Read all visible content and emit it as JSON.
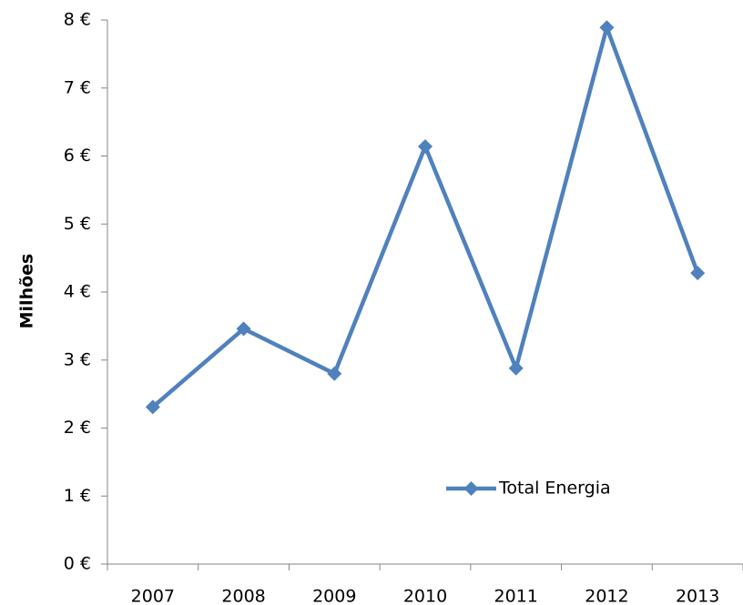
{
  "chart_data": {
    "type": "line",
    "ylabel": "Milhões",
    "categories": [
      "2007",
      "2008",
      "2009",
      "2010",
      "2011",
      "2012",
      "2013"
    ],
    "series": [
      {
        "name": "Total Energia",
        "color": "#4f81bd",
        "values": [
          2.31,
          3.46,
          2.8,
          6.14,
          2.88,
          7.89,
          4.28
        ]
      }
    ],
    "ylim": [
      0,
      8
    ],
    "yticks": [
      {
        "value": 0,
        "label": "0 €"
      },
      {
        "value": 1,
        "label": "1 €"
      },
      {
        "value": 2,
        "label": "2 €"
      },
      {
        "value": 3,
        "label": "3 €"
      },
      {
        "value": 4,
        "label": "4 €"
      },
      {
        "value": 5,
        "label": "5 €"
      },
      {
        "value": 6,
        "label": "6 €"
      },
      {
        "value": 7,
        "label": "7 €"
      },
      {
        "value": 8,
        "label": "8 €"
      }
    ],
    "legend": "inside-bottom-right"
  }
}
